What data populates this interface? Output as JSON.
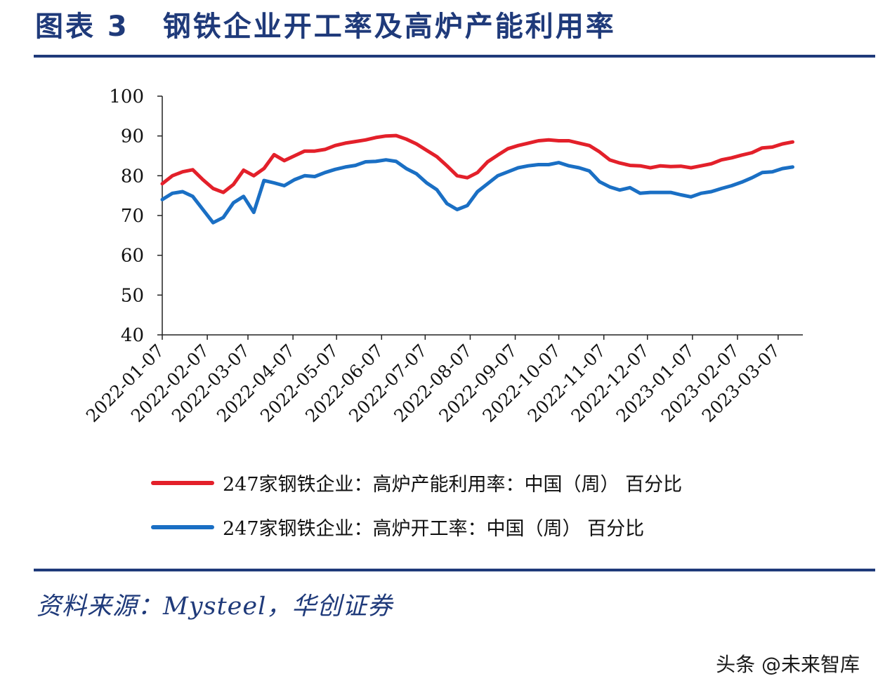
{
  "figure": {
    "label": "图表 3",
    "title": "钢铁企业开工率及高炉产能利用率"
  },
  "source": "资料来源：Mysteel，华创证券",
  "watermark": "头条 @未来智库",
  "colors": {
    "series_red": "#e3202a",
    "series_blue": "#1a6fc4",
    "brand": "#1f3a7a"
  },
  "chart_data": {
    "type": "line",
    "ylim": [
      40,
      100
    ],
    "yticks": [
      40,
      50,
      60,
      70,
      80,
      90,
      100
    ],
    "xlim": [
      "2022-01-07",
      "2023-03-24"
    ],
    "xticks": [
      "2022-01-07",
      "2022-02-07",
      "2022-03-07",
      "2022-04-07",
      "2022-05-07",
      "2022-06-07",
      "2022-07-07",
      "2022-08-07",
      "2022-09-07",
      "2022-10-07",
      "2022-11-07",
      "2022-12-07",
      "2023-01-07",
      "2023-02-07",
      "2023-03-07"
    ],
    "legend_position": "bottom",
    "series": [
      {
        "name": "247家钢铁企业：高炉产能利用率：中国（周） 百分比",
        "color": "#e3202a",
        "points": [
          [
            "2022-01-07",
            78.0
          ],
          [
            "2022-01-14",
            80.0
          ],
          [
            "2022-01-21",
            81.0
          ],
          [
            "2022-01-28",
            81.5
          ],
          [
            "2022-02-04",
            79.0
          ],
          [
            "2022-02-11",
            76.8
          ],
          [
            "2022-02-18",
            75.8
          ],
          [
            "2022-02-25",
            77.8
          ],
          [
            "2022-03-04",
            81.4
          ],
          [
            "2022-03-11",
            80.0
          ],
          [
            "2022-03-18",
            81.8
          ],
          [
            "2022-03-25",
            85.3
          ],
          [
            "2022-04-01",
            83.8
          ],
          [
            "2022-04-08",
            85.0
          ],
          [
            "2022-04-15",
            86.2
          ],
          [
            "2022-04-22",
            86.2
          ],
          [
            "2022-04-29",
            86.6
          ],
          [
            "2022-05-06",
            87.6
          ],
          [
            "2022-05-13",
            88.2
          ],
          [
            "2022-05-20",
            88.6
          ],
          [
            "2022-05-27",
            89.0
          ],
          [
            "2022-06-03",
            89.6
          ],
          [
            "2022-06-10",
            90.0
          ],
          [
            "2022-06-17",
            90.1
          ],
          [
            "2022-06-24",
            89.2
          ],
          [
            "2022-07-01",
            88.0
          ],
          [
            "2022-07-08",
            86.4
          ],
          [
            "2022-07-15",
            84.8
          ],
          [
            "2022-07-22",
            82.5
          ],
          [
            "2022-07-29",
            80.0
          ],
          [
            "2022-08-05",
            79.5
          ],
          [
            "2022-08-12",
            80.8
          ],
          [
            "2022-08-19",
            83.5
          ],
          [
            "2022-08-26",
            85.2
          ],
          [
            "2022-09-02",
            86.8
          ],
          [
            "2022-09-09",
            87.6
          ],
          [
            "2022-09-16",
            88.2
          ],
          [
            "2022-09-23",
            88.8
          ],
          [
            "2022-09-30",
            89.0
          ],
          [
            "2022-10-07",
            88.8
          ],
          [
            "2022-10-14",
            88.8
          ],
          [
            "2022-10-21",
            88.2
          ],
          [
            "2022-10-28",
            87.6
          ],
          [
            "2022-11-04",
            86.0
          ],
          [
            "2022-11-11",
            84.0
          ],
          [
            "2022-11-18",
            83.2
          ],
          [
            "2022-11-25",
            82.6
          ],
          [
            "2022-12-02",
            82.5
          ],
          [
            "2022-12-09",
            82.0
          ],
          [
            "2022-12-16",
            82.5
          ],
          [
            "2022-12-23",
            82.3
          ],
          [
            "2022-12-30",
            82.4
          ],
          [
            "2023-01-06",
            82.0
          ],
          [
            "2023-01-13",
            82.5
          ],
          [
            "2023-01-20",
            83.0
          ],
          [
            "2023-01-27",
            84.0
          ],
          [
            "2023-02-03",
            84.5
          ],
          [
            "2023-02-10",
            85.2
          ],
          [
            "2023-02-17",
            85.8
          ],
          [
            "2023-02-24",
            87.0
          ],
          [
            "2023-03-03",
            87.2
          ],
          [
            "2023-03-10",
            88.0
          ],
          [
            "2023-03-17",
            88.5
          ]
        ]
      },
      {
        "name": "247家钢铁企业：高炉开工率：中国（周） 百分比",
        "color": "#1a6fc4",
        "points": [
          [
            "2022-01-07",
            74.0
          ],
          [
            "2022-01-14",
            75.6
          ],
          [
            "2022-01-21",
            76.0
          ],
          [
            "2022-01-28",
            74.8
          ],
          [
            "2022-02-04",
            71.5
          ],
          [
            "2022-02-11",
            68.2
          ],
          [
            "2022-02-18",
            69.5
          ],
          [
            "2022-02-25",
            73.2
          ],
          [
            "2022-03-04",
            74.8
          ],
          [
            "2022-03-11",
            70.8
          ],
          [
            "2022-03-18",
            78.8
          ],
          [
            "2022-03-25",
            78.2
          ],
          [
            "2022-04-01",
            77.5
          ],
          [
            "2022-04-08",
            79.0
          ],
          [
            "2022-04-15",
            80.0
          ],
          [
            "2022-04-22",
            79.8
          ],
          [
            "2022-04-29",
            80.8
          ],
          [
            "2022-05-06",
            81.6
          ],
          [
            "2022-05-13",
            82.2
          ],
          [
            "2022-05-20",
            82.6
          ],
          [
            "2022-05-27",
            83.5
          ],
          [
            "2022-06-03",
            83.6
          ],
          [
            "2022-06-10",
            84.0
          ],
          [
            "2022-06-17",
            83.6
          ],
          [
            "2022-06-24",
            81.8
          ],
          [
            "2022-07-01",
            80.5
          ],
          [
            "2022-07-08",
            78.2
          ],
          [
            "2022-07-15",
            76.5
          ],
          [
            "2022-07-22",
            73.0
          ],
          [
            "2022-07-29",
            71.5
          ],
          [
            "2022-08-05",
            72.5
          ],
          [
            "2022-08-12",
            76.0
          ],
          [
            "2022-08-19",
            78.0
          ],
          [
            "2022-08-26",
            80.0
          ],
          [
            "2022-09-02",
            81.0
          ],
          [
            "2022-09-09",
            82.0
          ],
          [
            "2022-09-16",
            82.5
          ],
          [
            "2022-09-23",
            82.8
          ],
          [
            "2022-09-30",
            82.8
          ],
          [
            "2022-10-07",
            83.3
          ],
          [
            "2022-10-14",
            82.5
          ],
          [
            "2022-10-21",
            82.0
          ],
          [
            "2022-10-28",
            81.2
          ],
          [
            "2022-11-04",
            78.5
          ],
          [
            "2022-11-11",
            77.2
          ],
          [
            "2022-11-18",
            76.4
          ],
          [
            "2022-11-25",
            77.0
          ],
          [
            "2022-12-02",
            75.6
          ],
          [
            "2022-12-09",
            75.8
          ],
          [
            "2022-12-16",
            75.8
          ],
          [
            "2022-12-23",
            75.8
          ],
          [
            "2022-12-30",
            75.2
          ],
          [
            "2023-01-06",
            74.7
          ],
          [
            "2023-01-13",
            75.6
          ],
          [
            "2023-01-20",
            76.0
          ],
          [
            "2023-01-27",
            76.8
          ],
          [
            "2023-02-03",
            77.5
          ],
          [
            "2023-02-10",
            78.4
          ],
          [
            "2023-02-17",
            79.5
          ],
          [
            "2023-02-24",
            80.8
          ],
          [
            "2023-03-03",
            81.0
          ],
          [
            "2023-03-10",
            81.8
          ],
          [
            "2023-03-17",
            82.2
          ]
        ]
      }
    ]
  }
}
